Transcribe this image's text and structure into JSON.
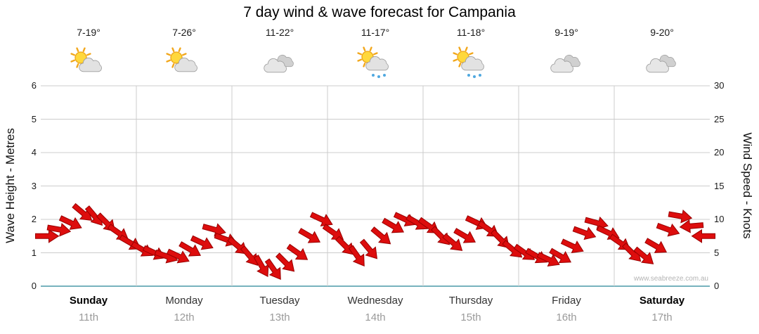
{
  "title": "7 day wind & wave forecast for Campania",
  "watermark": "www.seabreeze.com.au",
  "axes": {
    "left_label": "Wave Height - Metres",
    "right_label": "Wind Speed - Knots",
    "left_ticks": [
      0,
      1,
      2,
      3,
      4,
      5,
      6
    ],
    "right_ticks": [
      0,
      5,
      10,
      15,
      20,
      25,
      30
    ]
  },
  "days": [
    {
      "name": "Sunday",
      "date": "11th",
      "temp": "7-19°",
      "icon": "partly-sunny",
      "weekend": true
    },
    {
      "name": "Monday",
      "date": "12th",
      "temp": "7-26°",
      "icon": "partly-sunny",
      "weekend": false
    },
    {
      "name": "Tuesday",
      "date": "13th",
      "temp": "11-22°",
      "icon": "cloudy",
      "weekend": false
    },
    {
      "name": "Wednesday",
      "date": "14th",
      "temp": "11-17°",
      "icon": "sun-showers",
      "weekend": false
    },
    {
      "name": "Thursday",
      "date": "15th",
      "temp": "11-18°",
      "icon": "sun-showers",
      "weekend": false
    },
    {
      "name": "Friday",
      "date": "16th",
      "temp": "9-19°",
      "icon": "cloudy",
      "weekend": false
    },
    {
      "name": "Saturday",
      "date": "17th",
      "temp": "9-20°",
      "icon": "cloudy",
      "weekend": true
    }
  ],
  "colors": {
    "arrow": "#dd0d0d",
    "arrow_outline": "#990000",
    "grid": "#cccccc",
    "baseline": "#4a9aa8",
    "weekday_label": "#333333",
    "weekend_label": "#000000",
    "date_label": "#999999",
    "watermark": "#b4b4b4"
  },
  "chart_data": {
    "type": "line",
    "subtype": "wind-direction-arrows",
    "title": "7 day wind & wave forecast for Campania",
    "x_categories_days": [
      "Sunday 11th",
      "Monday 12th",
      "Tuesday 13th",
      "Wednesday 14th",
      "Thursday 15th",
      "Friday 16th",
      "Saturday 17th"
    ],
    "points_per_day": 8,
    "x_unit": "3-hourly intervals across 7 days",
    "left_axis": {
      "label": "Wave Height - Metres",
      "range": [
        0,
        6
      ],
      "grid": true
    },
    "right_axis": {
      "label": "Wind Speed - Knots",
      "range": [
        0,
        30
      ]
    },
    "legend_position": "none",
    "wind_speed_knots": [
      7.5,
      8.5,
      9.5,
      11,
      10.5,
      9.5,
      8,
      6.5,
      5.5,
      5,
      4.5,
      4.5,
      5.5,
      6.5,
      8.5,
      7,
      6,
      4.5,
      3,
      2.5,
      3.5,
      5,
      7.5,
      10,
      8,
      6,
      4.5,
      5.5,
      7.5,
      9,
      10,
      9.5,
      9,
      7.5,
      6.5,
      7.5,
      9.5,
      8.5,
      7,
      5.5,
      5,
      4.5,
      4,
      4.5,
      6,
      8,
      9.5,
      8,
      6.5,
      5,
      4.5,
      6,
      8.5,
      10.5,
      9,
      7.5
    ],
    "wind_direction_deg": [
      0,
      10,
      25,
      40,
      50,
      45,
      35,
      30,
      30,
      25,
      20,
      25,
      30,
      25,
      15,
      20,
      40,
      50,
      60,
      55,
      45,
      35,
      30,
      25,
      35,
      45,
      55,
      50,
      40,
      30,
      25,
      30,
      35,
      45,
      40,
      30,
      25,
      35,
      45,
      40,
      35,
      30,
      25,
      30,
      25,
      20,
      15,
      25,
      35,
      45,
      40,
      30,
      20,
      10,
      175,
      180
    ]
  }
}
